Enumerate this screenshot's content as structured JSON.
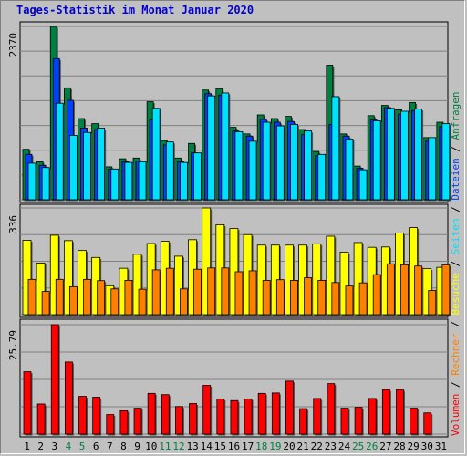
{
  "title": "Tages-Statistik im Monat Januar 2020",
  "colors": {
    "anfragen": "#008040",
    "dateien": "#0040ff",
    "seiten": "#00e0ff",
    "besuche": "#ffff00",
    "rechner": "#ff8000",
    "volumen": "#ff0000",
    "weekday_label": "#000000",
    "weekend_label": "#008040",
    "background": "#c0c0c0"
  },
  "legend": {
    "anfragen": "Anfragen",
    "dateien": "Dateien",
    "seiten": "Seiten",
    "besuche": "Besuche",
    "rechner": "Rechner",
    "volumen": "Volumen",
    "separator": " / "
  },
  "chart_data": [
    {
      "type": "bar",
      "panel": "top",
      "ymax_label": "2370",
      "ylim": [
        0,
        2370
      ],
      "categories": [
        "1",
        "2",
        "3",
        "4",
        "5",
        "6",
        "7",
        "8",
        "9",
        "10",
        "11",
        "12",
        "13",
        "14",
        "15",
        "16",
        "17",
        "18",
        "19",
        "20",
        "21",
        "22",
        "23",
        "24",
        "25",
        "26",
        "27",
        "28",
        "29",
        "30",
        "31"
      ],
      "weekend_days": [
        "4",
        "5",
        "11",
        "12",
        "18",
        "19",
        "25",
        "26"
      ],
      "series": [
        {
          "name": "Anfragen",
          "values": [
            690,
            520,
            2370,
            1530,
            1110,
            1040,
            450,
            560,
            570,
            1340,
            810,
            570,
            770,
            1500,
            1520,
            990,
            900,
            1160,
            1110,
            1140,
            960,
            660,
            1840,
            900,
            460,
            1150,
            1290,
            1230,
            1330,
            850,
            1060
          ]
        },
        {
          "name": "Dateien",
          "values": [
            620,
            470,
            1930,
            1360,
            980,
            960,
            420,
            520,
            530,
            1090,
            750,
            520,
            640,
            1450,
            1430,
            940,
            870,
            1100,
            1060,
            1070,
            890,
            600,
            1030,
            870,
            430,
            1090,
            1260,
            1170,
            1220,
            810,
            1000
          ]
        },
        {
          "name": "Seiten",
          "values": [
            500,
            440,
            1320,
            880,
            920,
            980,
            420,
            510,
            520,
            1250,
            790,
            510,
            640,
            1420,
            1460,
            930,
            800,
            1060,
            1010,
            1030,
            940,
            620,
            1410,
            830,
            410,
            1080,
            1250,
            1210,
            1240,
            850,
            1040
          ]
        }
      ]
    },
    {
      "type": "bar",
      "panel": "middle",
      "ymax_label": "336",
      "ylim": [
        0,
        336
      ],
      "categories": [
        "1",
        "2",
        "3",
        "4",
        "5",
        "6",
        "7",
        "8",
        "9",
        "10",
        "11",
        "12",
        "13",
        "14",
        "15",
        "16",
        "17",
        "18",
        "19",
        "20",
        "21",
        "22",
        "23",
        "24",
        "25",
        "26",
        "27",
        "28",
        "29",
        "30",
        "31"
      ],
      "series": [
        {
          "name": "Besuche",
          "values": [
            234,
            162,
            250,
            233,
            202,
            180,
            91,
            146,
            190,
            224,
            231,
            184,
            236,
            336,
            283,
            271,
            252,
            219,
            219,
            219,
            219,
            223,
            247,
            197,
            227,
            212,
            213,
            257,
            274,
            145,
            149
          ]
        },
        {
          "name": "Rechner",
          "values": [
            111,
            73,
            111,
            88,
            111,
            107,
            81,
            108,
            80,
            141,
            146,
            81,
            143,
            147,
            147,
            135,
            138,
            108,
            110,
            108,
            116,
            108,
            101,
            90,
            100,
            126,
            160,
            157,
            153,
            76,
            157
          ]
        }
      ]
    },
    {
      "type": "bar",
      "panel": "bottom",
      "ymax_label": "25.79",
      "ylim": [
        0,
        25.79
      ],
      "categories": [
        "1",
        "2",
        "3",
        "4",
        "5",
        "6",
        "7",
        "8",
        "9",
        "10",
        "11",
        "12",
        "13",
        "14",
        "15",
        "16",
        "17",
        "18",
        "19",
        "20",
        "21",
        "22",
        "23",
        "24",
        "25",
        "26",
        "27",
        "28",
        "29",
        "30",
        "31"
      ],
      "series": [
        {
          "name": "Volumen",
          "values": [
            14.7,
            7.1,
            25.79,
            17.0,
            8.9,
            8.7,
            4.6,
            5.5,
            6.1,
            9.6,
            9.3,
            6.5,
            7.2,
            11.5,
            8.3,
            7.9,
            8.3,
            9.6,
            9.7,
            12.5,
            6.0,
            8.4,
            11.9,
            6.1,
            6.3,
            8.4,
            10.5,
            10.5,
            6.1,
            5.0,
            0
          ]
        }
      ]
    }
  ]
}
